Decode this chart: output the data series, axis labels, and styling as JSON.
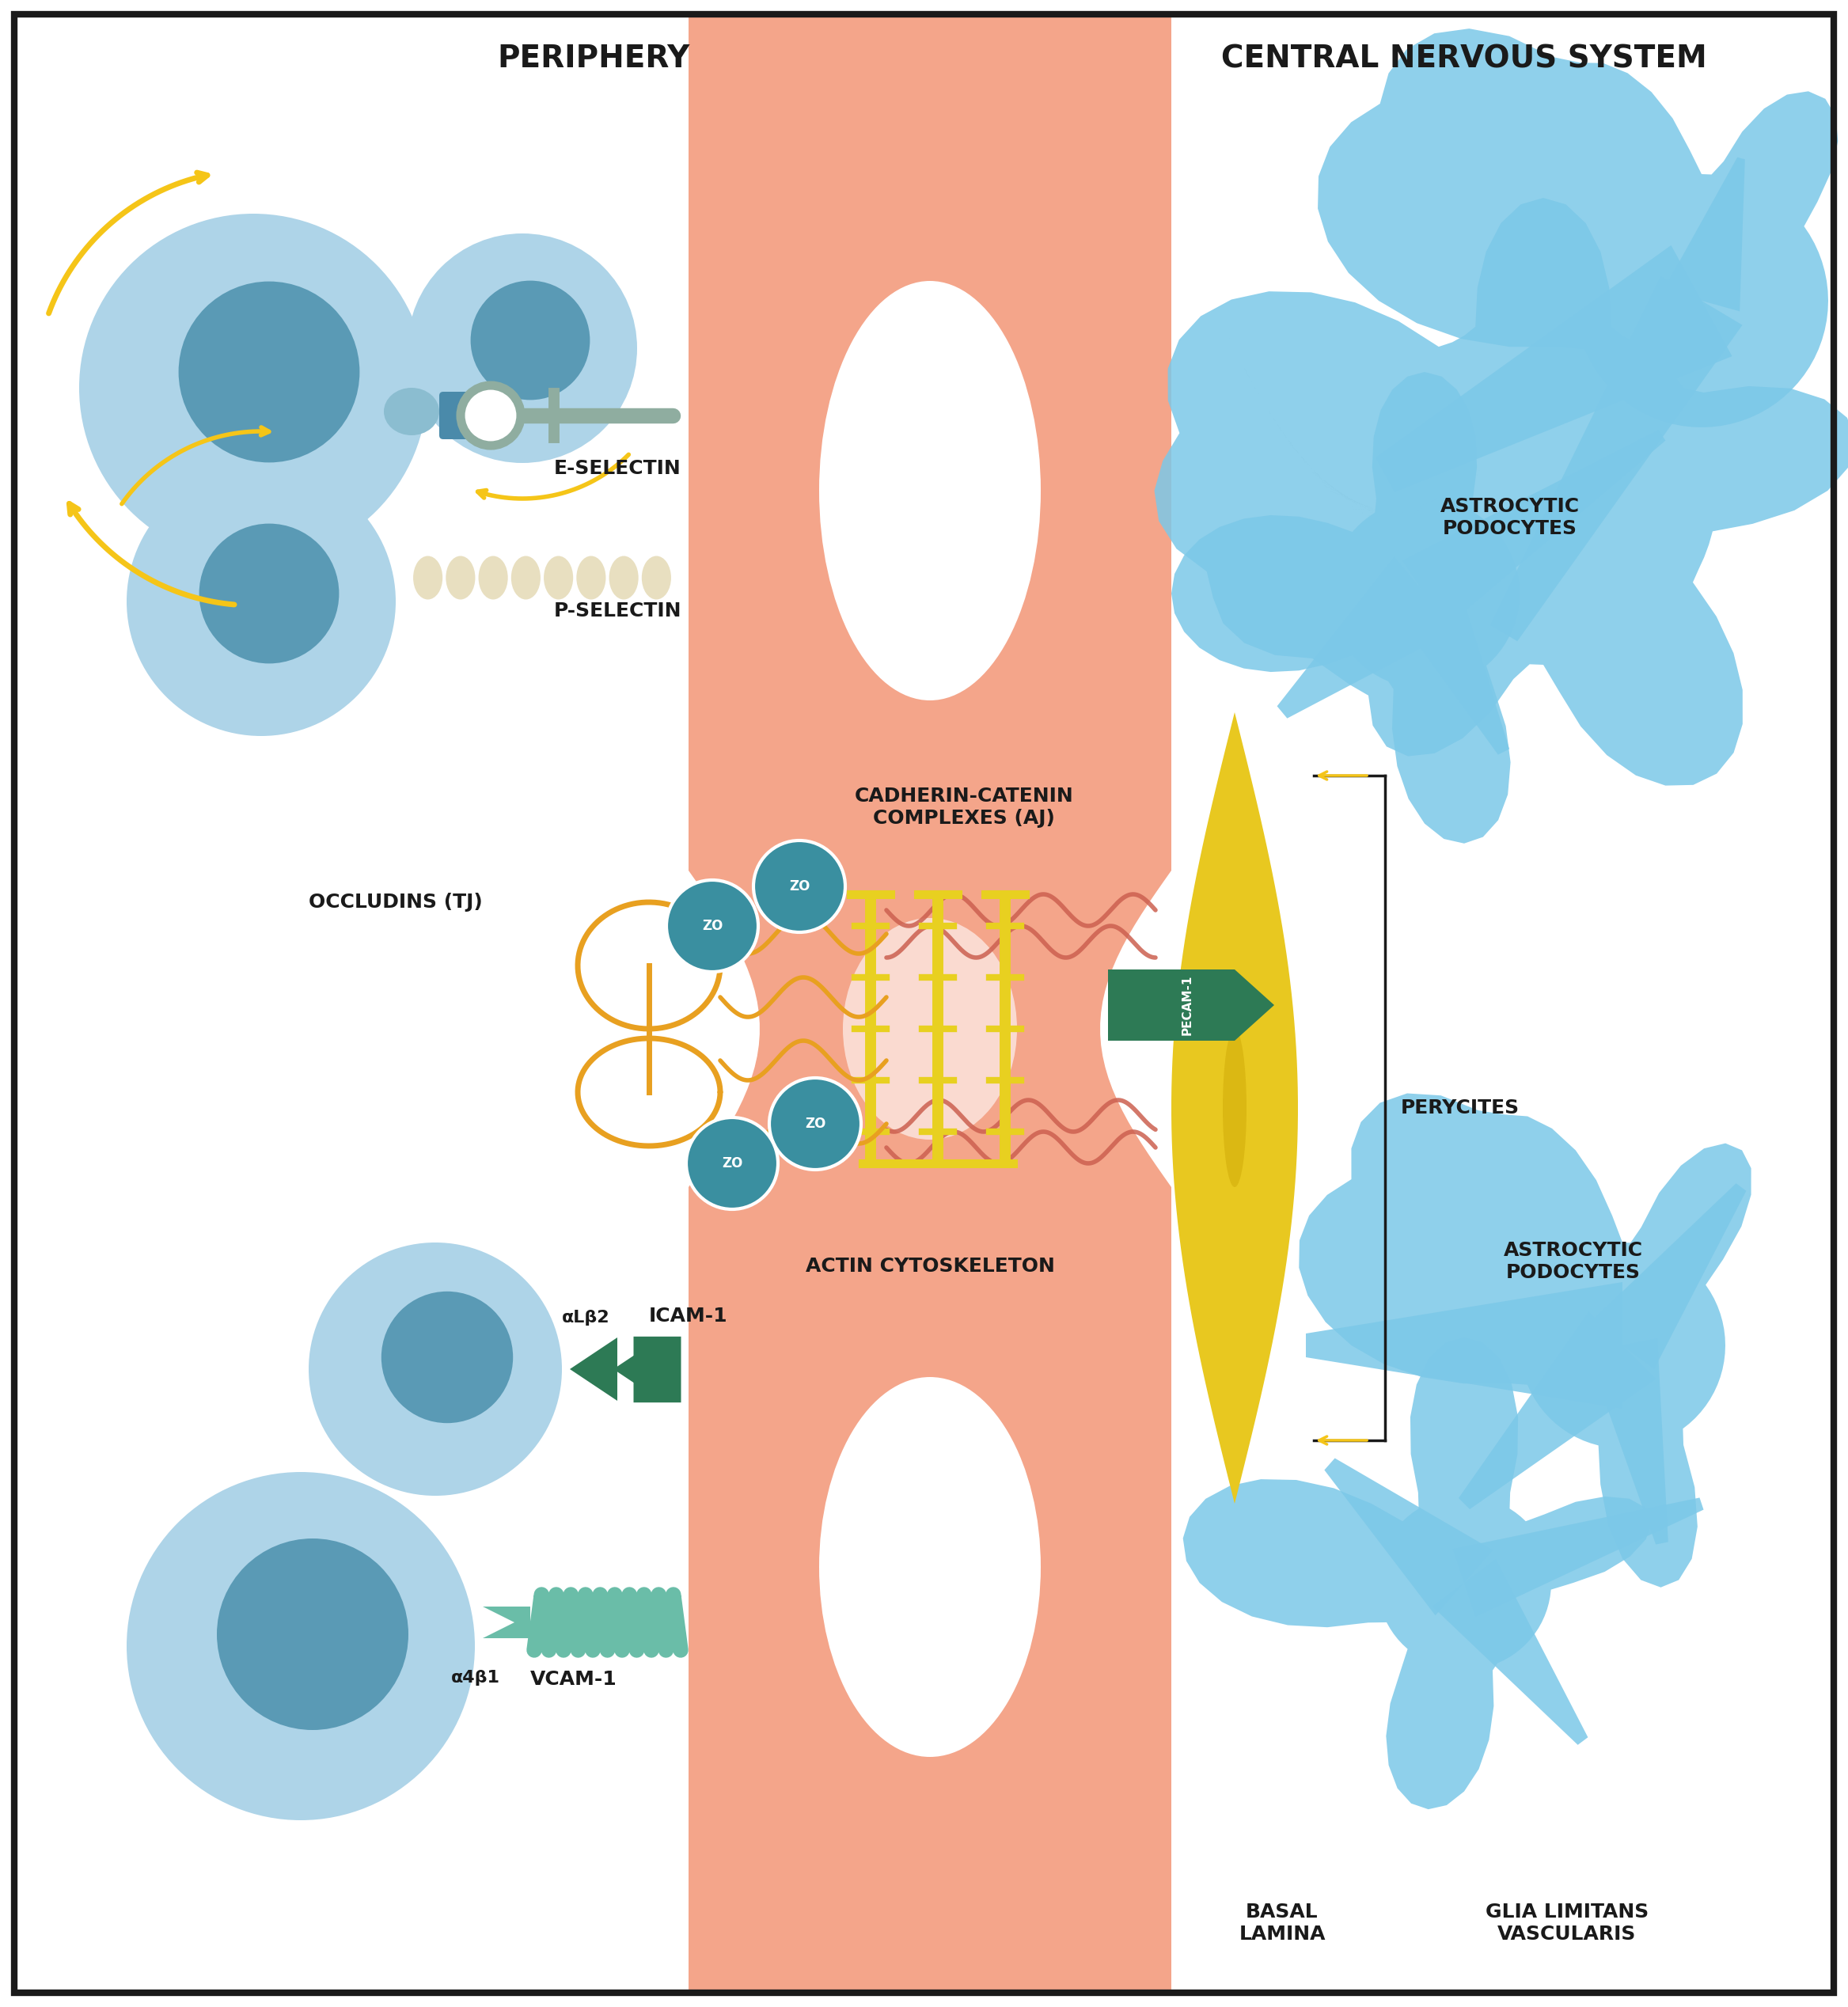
{
  "bg_color": "#ffffff",
  "border_color": "#1a1a1a",
  "vessel_color": "#f4a58a",
  "cell_outer_color": "#aed4e8",
  "cell_inner_color": "#5a9ab5",
  "yellow_color": "#f5c518",
  "selectin_color": "#8fada0",
  "p_selectin_color": "#e8dfc0",
  "zo_circle_color": "#3a8fa0",
  "zo_text_color": "#ffffff",
  "occludin_color": "#e8a020",
  "cadherin_color": "#e8d020",
  "actin_color": "#cc6050",
  "pecam_color": "#2d7a55",
  "icam_color": "#2d7a55",
  "vcam_color": "#6abda8",
  "pericyte_color": "#e8c820",
  "astrocyte_color": "#7cc8e8",
  "text_color": "#1a1a1a",
  "label_periphery": "PERIPHERY",
  "label_cns": "CENTRAL NERVOUS SYSTEM",
  "label_eselectin": "E-SELECTIN",
  "label_pselectin": "P-SELECTIN",
  "label_occludins": "OCCLUDINS (TJ)",
  "label_cadherin": "CADHERIN-CATENIN\nCOMPLEXES (AJ)",
  "label_actin": "ACTIN CYTOSKELETON",
  "label_pecam": "PECAM-1",
  "label_icam": "ICAM-1",
  "label_vcam": "VCAM-1",
  "label_alphal": "αLβ2",
  "label_alpha4": "α4β1",
  "label_perycites": "PERYCITES",
  "label_astrocytic1": "ASTROCYTIC\nPODOCYTES",
  "label_astrocytic2": "ASTROCYTIC\nPODOCYTES",
  "label_basal": "BASAL\nLAMINA",
  "label_glia": "GLIA LIMITANS\nVASCULARIS",
  "label_zo": "ZO",
  "fontsize_header": 28,
  "fontsize_label": 18,
  "fontsize_zo": 12
}
